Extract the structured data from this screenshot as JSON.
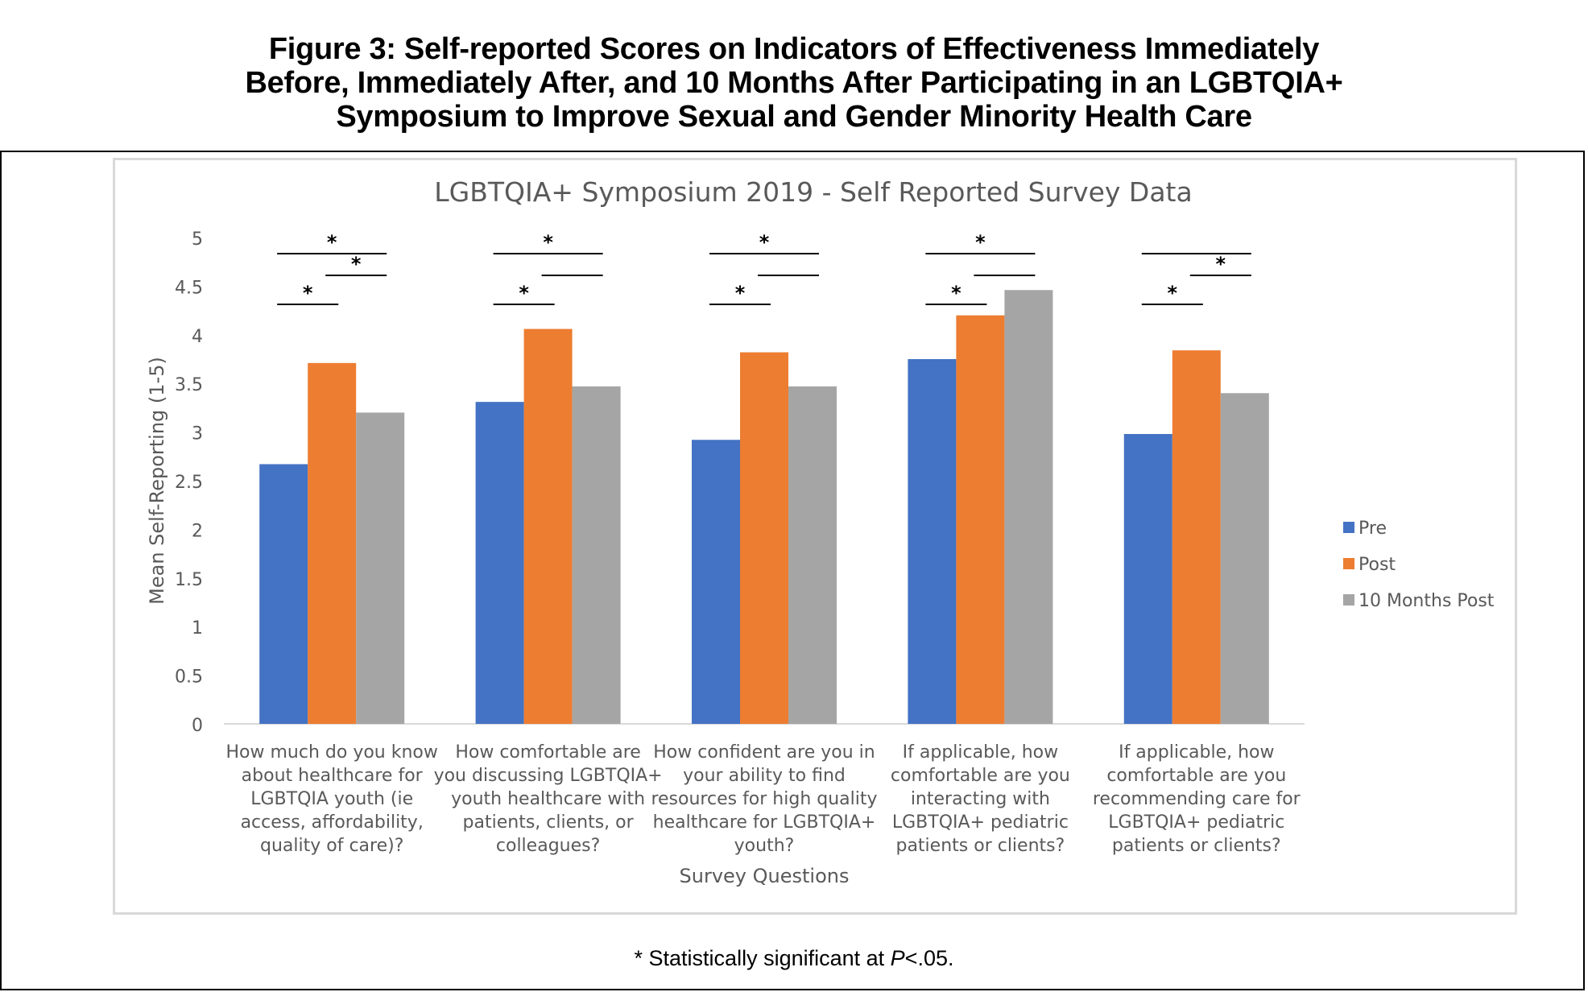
{
  "figure": {
    "title_lines": [
      "Figure 3: Self-reported Scores on Indicators of Effectiveness Immediately",
      "Before, Immediately After, and 10 Months After Participating in an LGBTQIA+",
      "Symposium to Improve Sexual and Gender Minority Health Care"
    ],
    "footnote_prefix": "* Statistically significant at ",
    "footnote_p": "P",
    "footnote_suffix": "<.05."
  },
  "chart_data": {
    "type": "bar",
    "title": "LGBTQIA+ Symposium 2019 - Self Reported Survey Data",
    "xlabel": "Survey Questions",
    "ylabel": "Mean Self-Reporting (1-5)",
    "ylim": [
      0,
      5
    ],
    "yticks": [
      "0",
      "0.5",
      "1",
      "1.5",
      "2",
      "2.5",
      "3",
      "3.5",
      "4",
      "4.5",
      "5"
    ],
    "grid": false,
    "legend_position": "right",
    "categories": [
      [
        "How much do you know",
        "about healthcare for",
        "LGBTQIA youth (ie",
        "access, affordability,",
        "quality of care)?"
      ],
      [
        "How comfortable are",
        "you discussing LGBTQIA+",
        "youth healthcare with",
        "patients, clients, or",
        "colleagues?"
      ],
      [
        "How confident are you in",
        "your ability to find",
        "resources for high quality",
        "healthcare for LGBTQIA+",
        "youth?"
      ],
      [
        "If applicable, how",
        "comfortable are you",
        "interacting with",
        "LGBTQIA+ pediatric",
        "patients or clients?"
      ],
      [
        "If applicable, how",
        "comfortable are you",
        "recommending care for",
        "LGBTQIA+ pediatric",
        "patients or clients?"
      ]
    ],
    "series": [
      {
        "name": "Pre",
        "color": "#4472c4",
        "values": [
          2.67,
          3.31,
          2.92,
          3.75,
          2.98
        ]
      },
      {
        "name": "Post",
        "color": "#ed7d31",
        "values": [
          3.71,
          4.06,
          3.82,
          4.2,
          3.84
        ]
      },
      {
        "name": "10 Months Post",
        "color": "#a5a5a5",
        "values": [
          3.2,
          3.47,
          3.47,
          4.46,
          3.4
        ]
      }
    ],
    "significance": [
      {
        "pre_post": true,
        "post_10mo": true,
        "pre_10mo": true
      },
      {
        "pre_post": true,
        "post_10mo": false,
        "pre_10mo": true
      },
      {
        "pre_post": true,
        "post_10mo": false,
        "pre_10mo": true
      },
      {
        "pre_post": true,
        "post_10mo": false,
        "pre_10mo": true
      },
      {
        "pre_post": true,
        "post_10mo": true,
        "pre_10mo": false
      }
    ],
    "significance_marker": "*"
  }
}
